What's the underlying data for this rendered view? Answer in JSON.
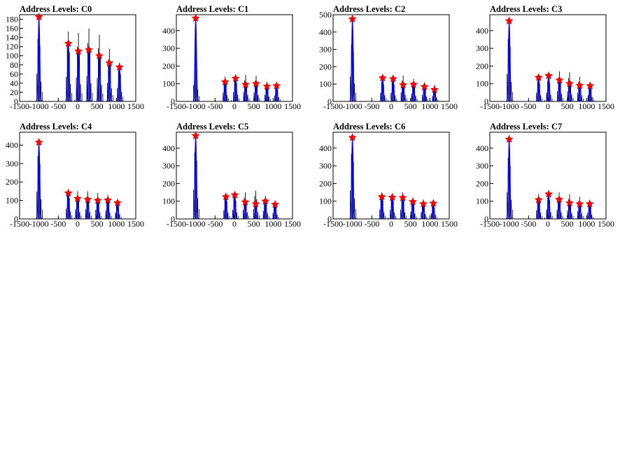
{
  "colors": {
    "histogram": "#000000",
    "fit": "#0000ee",
    "peak_marker_fill": "#ff0000",
    "peak_marker_stroke": "#cc0000",
    "frame": "#000000",
    "background": "#ffffff"
  },
  "marker_shape": "star",
  "chart_data": [
    {
      "type": "bar",
      "title": "Address Levels: C0",
      "xlim": [
        -1500,
        1500
      ],
      "ylim": [
        0,
        190
      ],
      "xticks": [
        -1500,
        -1000,
        -500,
        0,
        500,
        1000,
        1500
      ],
      "yticks": [
        0,
        20,
        40,
        60,
        80,
        100,
        120,
        140,
        160,
        180
      ],
      "xtick_labels": [
        "-1500",
        "-1000",
        "-500",
        "0",
        "500",
        "1000",
        "1500"
      ],
      "ytick_labels": [
        "0",
        "20",
        "40",
        "60",
        "80",
        "100",
        "120",
        "140",
        "160",
        "180"
      ],
      "peaks": [
        {
          "x": -1000,
          "y": 185
        },
        {
          "x": -240,
          "y": 127
        },
        {
          "x": 20,
          "y": 110
        },
        {
          "x": 290,
          "y": 113
        },
        {
          "x": 560,
          "y": 100
        },
        {
          "x": 820,
          "y": 84
        },
        {
          "x": 1080,
          "y": 75
        }
      ],
      "hist_max": [
        172,
        153,
        150,
        160,
        146,
        115,
        85
      ]
    },
    {
      "type": "bar",
      "title": "Address Levels: C1",
      "xlim": [
        -1500,
        1500
      ],
      "ylim": [
        0,
        490
      ],
      "xticks": [
        -1500,
        -1000,
        -500,
        0,
        500,
        1000,
        1500
      ],
      "yticks": [
        0,
        100,
        200,
        300,
        400
      ],
      "xtick_labels": [
        "-1500",
        "-1000",
        "-500",
        "0",
        "500",
        "1000",
        "1500"
      ],
      "ytick_labels": [
        "0",
        "100",
        "200",
        "300",
        "400"
      ],
      "peaks": [
        {
          "x": -1000,
          "y": 470
        },
        {
          "x": -240,
          "y": 110
        },
        {
          "x": 30,
          "y": 130
        },
        {
          "x": 290,
          "y": 95
        },
        {
          "x": 560,
          "y": 100
        },
        {
          "x": 840,
          "y": 85
        },
        {
          "x": 1090,
          "y": 88
        }
      ],
      "hist_max": [
        260,
        140,
        150,
        150,
        145,
        110,
        95
      ]
    },
    {
      "type": "bar",
      "title": "Address Levels: C2",
      "xlim": [
        -1500,
        1500
      ],
      "ylim": [
        0,
        500
      ],
      "xticks": [
        -1500,
        -1000,
        -500,
        0,
        500,
        1000,
        1500
      ],
      "yticks": [
        0,
        100,
        200,
        300,
        400,
        500
      ],
      "xtick_labels": [
        "-1500",
        "-1000",
        "-500",
        "0",
        "500",
        "1000",
        "1500"
      ],
      "ytick_labels": [
        "0",
        "100",
        "200",
        "300",
        "400",
        "500"
      ],
      "peaks": [
        {
          "x": -1000,
          "y": 475
        },
        {
          "x": -220,
          "y": 135
        },
        {
          "x": 50,
          "y": 130
        },
        {
          "x": 310,
          "y": 95
        },
        {
          "x": 580,
          "y": 98
        },
        {
          "x": 860,
          "y": 85
        },
        {
          "x": 1120,
          "y": 68
        }
      ],
      "hist_max": [
        410,
        140,
        140,
        150,
        130,
        110,
        95
      ]
    },
    {
      "type": "bar",
      "title": "Address Levels: C3",
      "xlim": [
        -1500,
        1500
      ],
      "ylim": [
        0,
        490
      ],
      "xticks": [
        -1500,
        -1000,
        -500,
        0,
        500,
        1000,
        1500
      ],
      "yticks": [
        0,
        100,
        200,
        300,
        400
      ],
      "xtick_labels": [
        "-1500",
        "-1000",
        "-500",
        "0",
        "500",
        "1000",
        "1500"
      ],
      "ytick_labels": [
        "0",
        "100",
        "200",
        "300",
        "400"
      ],
      "peaks": [
        {
          "x": -1000,
          "y": 455
        },
        {
          "x": -240,
          "y": 135
        },
        {
          "x": 20,
          "y": 145
        },
        {
          "x": 300,
          "y": 120
        },
        {
          "x": 560,
          "y": 100
        },
        {
          "x": 820,
          "y": 90
        },
        {
          "x": 1090,
          "y": 88
        }
      ],
      "hist_max": [
        440,
        140,
        145,
        170,
        165,
        140,
        100
      ]
    },
    {
      "type": "bar",
      "title": "Address Levels: C4",
      "xlim": [
        -1500,
        1500
      ],
      "ylim": [
        0,
        470
      ],
      "xticks": [
        -1500,
        -1000,
        -500,
        0,
        500,
        1000,
        1500
      ],
      "yticks": [
        0,
        100,
        200,
        300,
        400
      ],
      "xtick_labels": [
        "-1500",
        "-1000",
        "-500",
        "0",
        "500",
        "1000",
        "1500"
      ],
      "ytick_labels": [
        "0",
        "100",
        "200",
        "300",
        "400"
      ],
      "peaks": [
        {
          "x": -1000,
          "y": 415
        },
        {
          "x": -240,
          "y": 140
        },
        {
          "x": 0,
          "y": 110
        },
        {
          "x": 260,
          "y": 105
        },
        {
          "x": 520,
          "y": 100
        },
        {
          "x": 780,
          "y": 102
        },
        {
          "x": 1030,
          "y": 87
        }
      ],
      "hist_max": [
        425,
        160,
        150,
        150,
        140,
        130,
        100
      ]
    },
    {
      "type": "bar",
      "title": "Address Levels: C5",
      "xlim": [
        -1500,
        1500
      ],
      "ylim": [
        0,
        490
      ],
      "xticks": [
        -1500,
        -1000,
        -500,
        0,
        500,
        1000,
        1500
      ],
      "yticks": [
        0,
        100,
        200,
        300,
        400
      ],
      "xtick_labels": [
        "-1500",
        "-1000",
        "-500",
        "0",
        "500",
        "1000",
        "1500"
      ],
      "ytick_labels": [
        "0",
        "100",
        "200",
        "300",
        "400"
      ],
      "peaks": [
        {
          "x": -1000,
          "y": 470
        },
        {
          "x": -220,
          "y": 125
        },
        {
          "x": 10,
          "y": 135
        },
        {
          "x": 280,
          "y": 95
        },
        {
          "x": 550,
          "y": 85
        },
        {
          "x": 800,
          "y": 100
        },
        {
          "x": 1050,
          "y": 82
        }
      ],
      "hist_max": [
        470,
        140,
        145,
        150,
        160,
        130,
        100
      ]
    },
    {
      "type": "bar",
      "title": "Address Levels: C6",
      "xlim": [
        -1500,
        1500
      ],
      "ylim": [
        0,
        490
      ],
      "xticks": [
        -1500,
        -1000,
        -500,
        0,
        500,
        1000,
        1500
      ],
      "yticks": [
        0,
        100,
        200,
        300,
        400
      ],
      "xtick_labels": [
        "-1500",
        "-1000",
        "-500",
        "0",
        "500",
        "1000",
        "1500"
      ],
      "ytick_labels": [
        "0",
        "100",
        "200",
        "300",
        "400"
      ],
      "peaks": [
        {
          "x": -1000,
          "y": 460
        },
        {
          "x": -240,
          "y": 125
        },
        {
          "x": 30,
          "y": 122
        },
        {
          "x": 300,
          "y": 120
        },
        {
          "x": 560,
          "y": 97
        },
        {
          "x": 830,
          "y": 85
        },
        {
          "x": 1090,
          "y": 88
        }
      ],
      "hist_max": [
        460,
        150,
        145,
        150,
        120,
        110,
        90
      ]
    },
    {
      "type": "bar",
      "title": "Address Levels: C7",
      "xlim": [
        -1500,
        1500
      ],
      "ylim": [
        0,
        490
      ],
      "xticks": [
        -1500,
        -1000,
        -500,
        0,
        500,
        1000,
        1500
      ],
      "yticks": [
        0,
        100,
        200,
        300,
        400
      ],
      "xtick_labels": [
        "-1500",
        "-1000",
        "-500",
        "0",
        "500",
        "1000",
        "1500"
      ],
      "ytick_labels": [
        "0",
        "100",
        "200",
        "300",
        "400"
      ],
      "peaks": [
        {
          "x": -1000,
          "y": 450
        },
        {
          "x": -240,
          "y": 108
        },
        {
          "x": 20,
          "y": 140
        },
        {
          "x": 290,
          "y": 110
        },
        {
          "x": 560,
          "y": 90
        },
        {
          "x": 820,
          "y": 84
        },
        {
          "x": 1080,
          "y": 85
        }
      ],
      "hist_max": [
        430,
        140,
        150,
        150,
        140,
        125,
        95
      ]
    }
  ]
}
